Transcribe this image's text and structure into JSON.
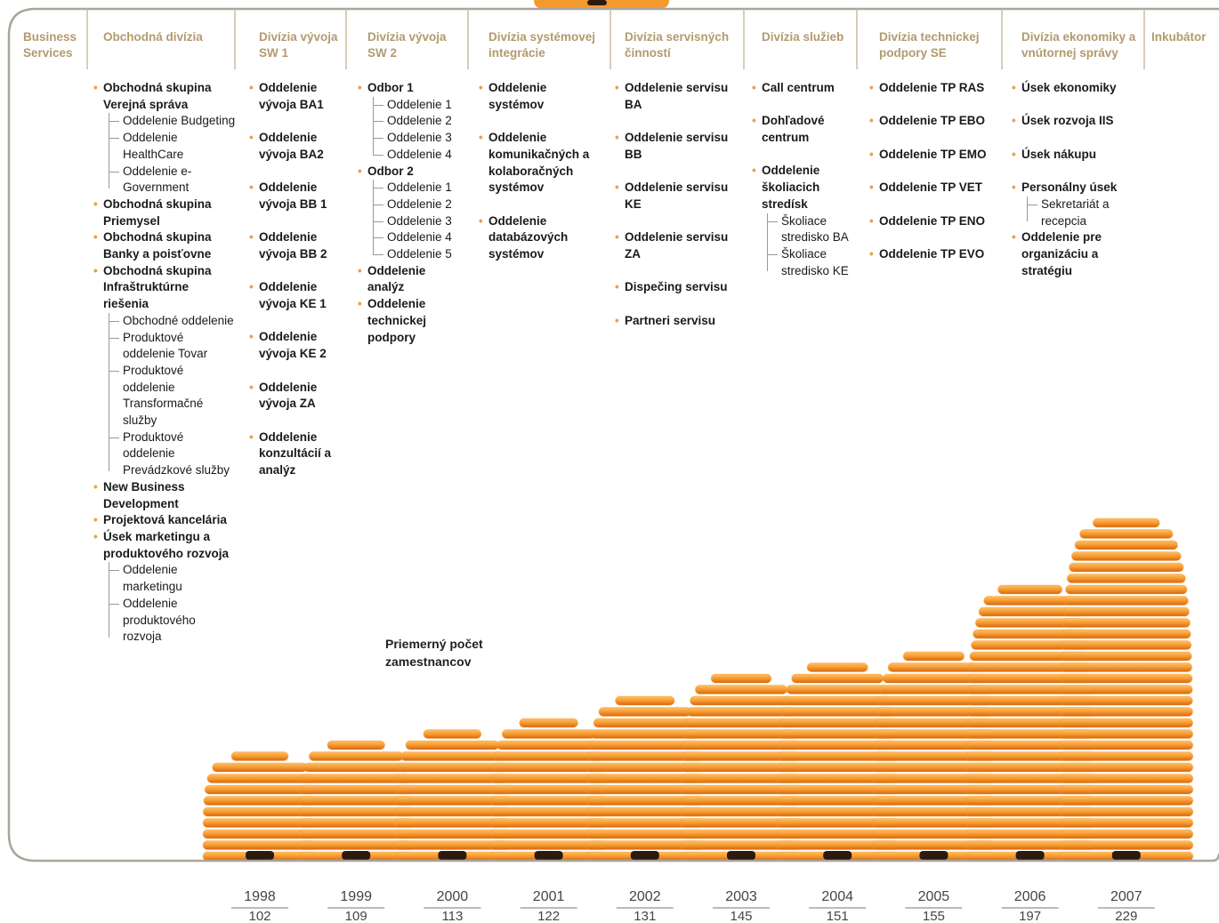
{
  "columns": [
    {
      "header": "Business Services",
      "items": []
    },
    {
      "header": "Obchodná divízia",
      "items": [
        {
          "text": "Obchodná skupina Verejná správa",
          "children": [
            "Oddelenie Budgeting",
            "Oddelenie HealthCare",
            "Oddelenie e-Government"
          ]
        },
        {
          "text": "Obchodná skupina Priemysel",
          "children": []
        },
        {
          "text": "Obchodná skupina Banky a poisťovne",
          "children": []
        },
        {
          "text": "Obchodná skupina Infraštruktúrne riešenia",
          "children": [
            "Obchodné oddelenie",
            "Produktové oddelenie Tovar",
            "Produktové oddelenie Transformačné služby",
            "Produktové oddelenie Prevádzkové služby"
          ]
        },
        {
          "text": "New Business Development",
          "children": []
        },
        {
          "text": "Projektová kancelária",
          "children": []
        },
        {
          "text": "Úsek marketingu a produktového rozvoja",
          "children": [
            "Oddelenie marketingu",
            "Oddelenie produktového rozvoja"
          ]
        }
      ]
    },
    {
      "header": "Divízia vývoja SW 1",
      "items": [
        {
          "text": "Oddelenie vývoja BA1",
          "children": []
        },
        {
          "text": "Oddelenie vývoja BA2",
          "children": []
        },
        {
          "text": "Oddelenie vývoja BB 1",
          "children": []
        },
        {
          "text": "Oddelenie vývoja BB 2",
          "children": []
        },
        {
          "text": "Oddelenie vývoja KE 1",
          "children": []
        },
        {
          "text": "Oddelenie vývoja KE 2",
          "children": []
        },
        {
          "text": "Oddelenie vývoja ZA",
          "children": []
        },
        {
          "text": "Oddelenie konzultácií a analýz",
          "children": []
        }
      ]
    },
    {
      "header": "Divízia vývoja SW 2",
      "items": [
        {
          "text": "Odbor 1",
          "children": [
            "Oddelenie 1",
            "Oddelenie 2",
            "Oddelenie 3",
            "Oddelenie 4"
          ]
        },
        {
          "text": "Odbor 2",
          "children": [
            "Oddelenie 1",
            "Oddelenie 2",
            "Oddelenie 3",
            "Oddelenie 4",
            "Oddelenie 5"
          ]
        },
        {
          "text": "Oddelenie analýz",
          "children": []
        },
        {
          "text": "Oddelenie technickej podpory",
          "children": []
        }
      ]
    },
    {
      "header": "Divízia systémovej integrácie",
      "items": [
        {
          "text": "Oddelenie systémov",
          "children": []
        },
        {
          "text": "Oddelenie komunikačných a kolaboračných systémov",
          "children": []
        },
        {
          "text": "Oddelenie databázových systémov",
          "children": []
        }
      ]
    },
    {
      "header": "Divízia servisných činností",
      "items": [
        {
          "text": "Oddelenie servisu BA",
          "children": []
        },
        {
          "text": "Oddelenie servisu BB",
          "children": []
        },
        {
          "text": "Oddelenie servisu KE",
          "children": []
        },
        {
          "text": "Oddelenie servisu ZA",
          "children": []
        },
        {
          "text": "Dispečing servisu",
          "children": []
        },
        {
          "text": "Partneri servisu",
          "children": []
        }
      ]
    },
    {
      "header": "Divízia služieb",
      "items": [
        {
          "text": "Call centrum",
          "children": []
        },
        {
          "text": "Dohľadové centrum",
          "children": []
        },
        {
          "text": "Oddelenie školiacich stredísk",
          "children": [
            "Školiace stredisko BA",
            "Školiace stredisko KE"
          ]
        }
      ]
    },
    {
      "header": "Divízia technickej podpory SE",
      "items": [
        {
          "text": "Oddelenie TP RAS",
          "children": []
        },
        {
          "text": "Oddelenie TP EBO",
          "children": []
        },
        {
          "text": "Oddelenie TP EMO",
          "children": []
        },
        {
          "text": "Oddelenie TP VET",
          "children": []
        },
        {
          "text": "Oddelenie TP ENO",
          "children": []
        },
        {
          "text": "Oddelenie TP EVO",
          "children": []
        }
      ]
    },
    {
      "header": "Divízia ekonomiky a vnútornej správy",
      "items": [
        {
          "text": "Úsek ekonomiky",
          "children": []
        },
        {
          "text": "Úsek rozvoja IIS",
          "children": []
        },
        {
          "text": "Úsek nákupu",
          "children": []
        },
        {
          "text": "Personálny úsek",
          "children": [
            "Sekretariát a recepcia"
          ]
        },
        {
          "text": "Oddelenie pre organizáciu a stratégiu",
          "children": []
        }
      ]
    },
    {
      "header": "Inkubátor",
      "items": []
    }
  ],
  "chart_data": {
    "type": "bar",
    "title": "Priemerný počet zamestnancov",
    "categories": [
      "1998",
      "1999",
      "2000",
      "2001",
      "2002",
      "2003",
      "2004",
      "2005",
      "2006",
      "2007"
    ],
    "values": [
      102,
      109,
      113,
      122,
      131,
      145,
      151,
      155,
      197,
      229
    ],
    "color": "#f39a2e"
  }
}
